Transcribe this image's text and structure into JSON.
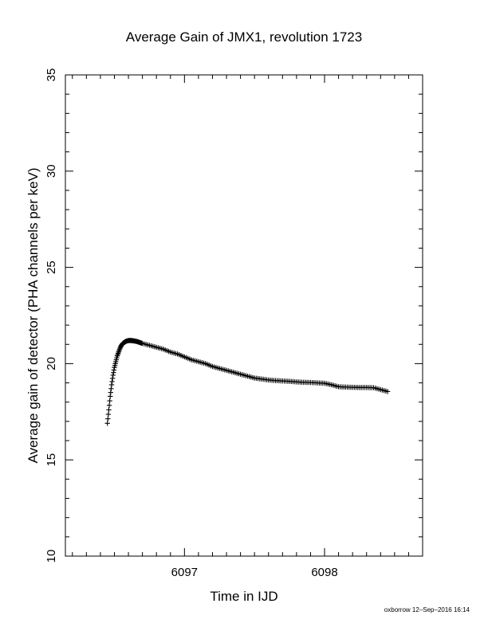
{
  "footer": {
    "credit": "oxborrow 12–Sep–2016 16:14"
  },
  "chart_data": {
    "type": "scatter",
    "title": "Average Gain of JMX1, revolution 1723",
    "xlabel": "Time in IJD",
    "ylabel": "Average gain of detector (PHA channels per keV)",
    "xlim": [
      6096.15,
      6098.7
    ],
    "ylim": [
      10,
      35
    ],
    "xticks": [
      6097,
      6098
    ],
    "xtick_labels": [
      "6097",
      "6098"
    ],
    "yticks": [
      10,
      15,
      20,
      25,
      30,
      35
    ],
    "ytick_labels": [
      "10",
      "15",
      "20",
      "25",
      "30",
      "35"
    ],
    "marker": "+",
    "color": "#000000",
    "grid": false,
    "series": [
      {
        "x": [
          6096.45,
          6096.46,
          6096.47,
          6096.48,
          6096.49,
          6096.5,
          6096.51,
          6096.52,
          6096.53,
          6096.54,
          6096.55,
          6096.56,
          6096.57,
          6096.58,
          6096.6,
          6096.62,
          6096.64,
          6096.66,
          6096.68,
          6096.7,
          6096.75,
          6096.8,
          6096.85,
          6096.9,
          6096.95,
          6097.0,
          6097.05,
          6097.1,
          6097.15,
          6097.2,
          6097.25,
          6097.3,
          6097.35,
          6097.4,
          6097.45,
          6097.5,
          6097.55,
          6097.6,
          6097.65,
          6097.7,
          6097.75,
          6097.8,
          6097.85,
          6097.9,
          6097.95,
          6098.0,
          6098.05,
          6098.1,
          6098.15,
          6098.2,
          6098.25,
          6098.3,
          6098.35,
          6098.4,
          6098.45
        ],
        "y": [
          16.9,
          17.6,
          18.3,
          18.9,
          19.4,
          19.8,
          20.1,
          20.4,
          20.6,
          20.8,
          20.95,
          21.05,
          21.1,
          21.15,
          21.2,
          21.2,
          21.18,
          21.15,
          21.1,
          21.05,
          20.95,
          20.85,
          20.75,
          20.6,
          20.5,
          20.35,
          20.2,
          20.1,
          20.0,
          19.85,
          19.75,
          19.65,
          19.55,
          19.45,
          19.35,
          19.25,
          19.2,
          19.15,
          19.12,
          19.1,
          19.08,
          19.05,
          19.03,
          19.02,
          19.0,
          18.98,
          18.9,
          18.8,
          18.78,
          18.77,
          18.76,
          18.76,
          18.75,
          18.65,
          18.55
        ]
      }
    ]
  }
}
